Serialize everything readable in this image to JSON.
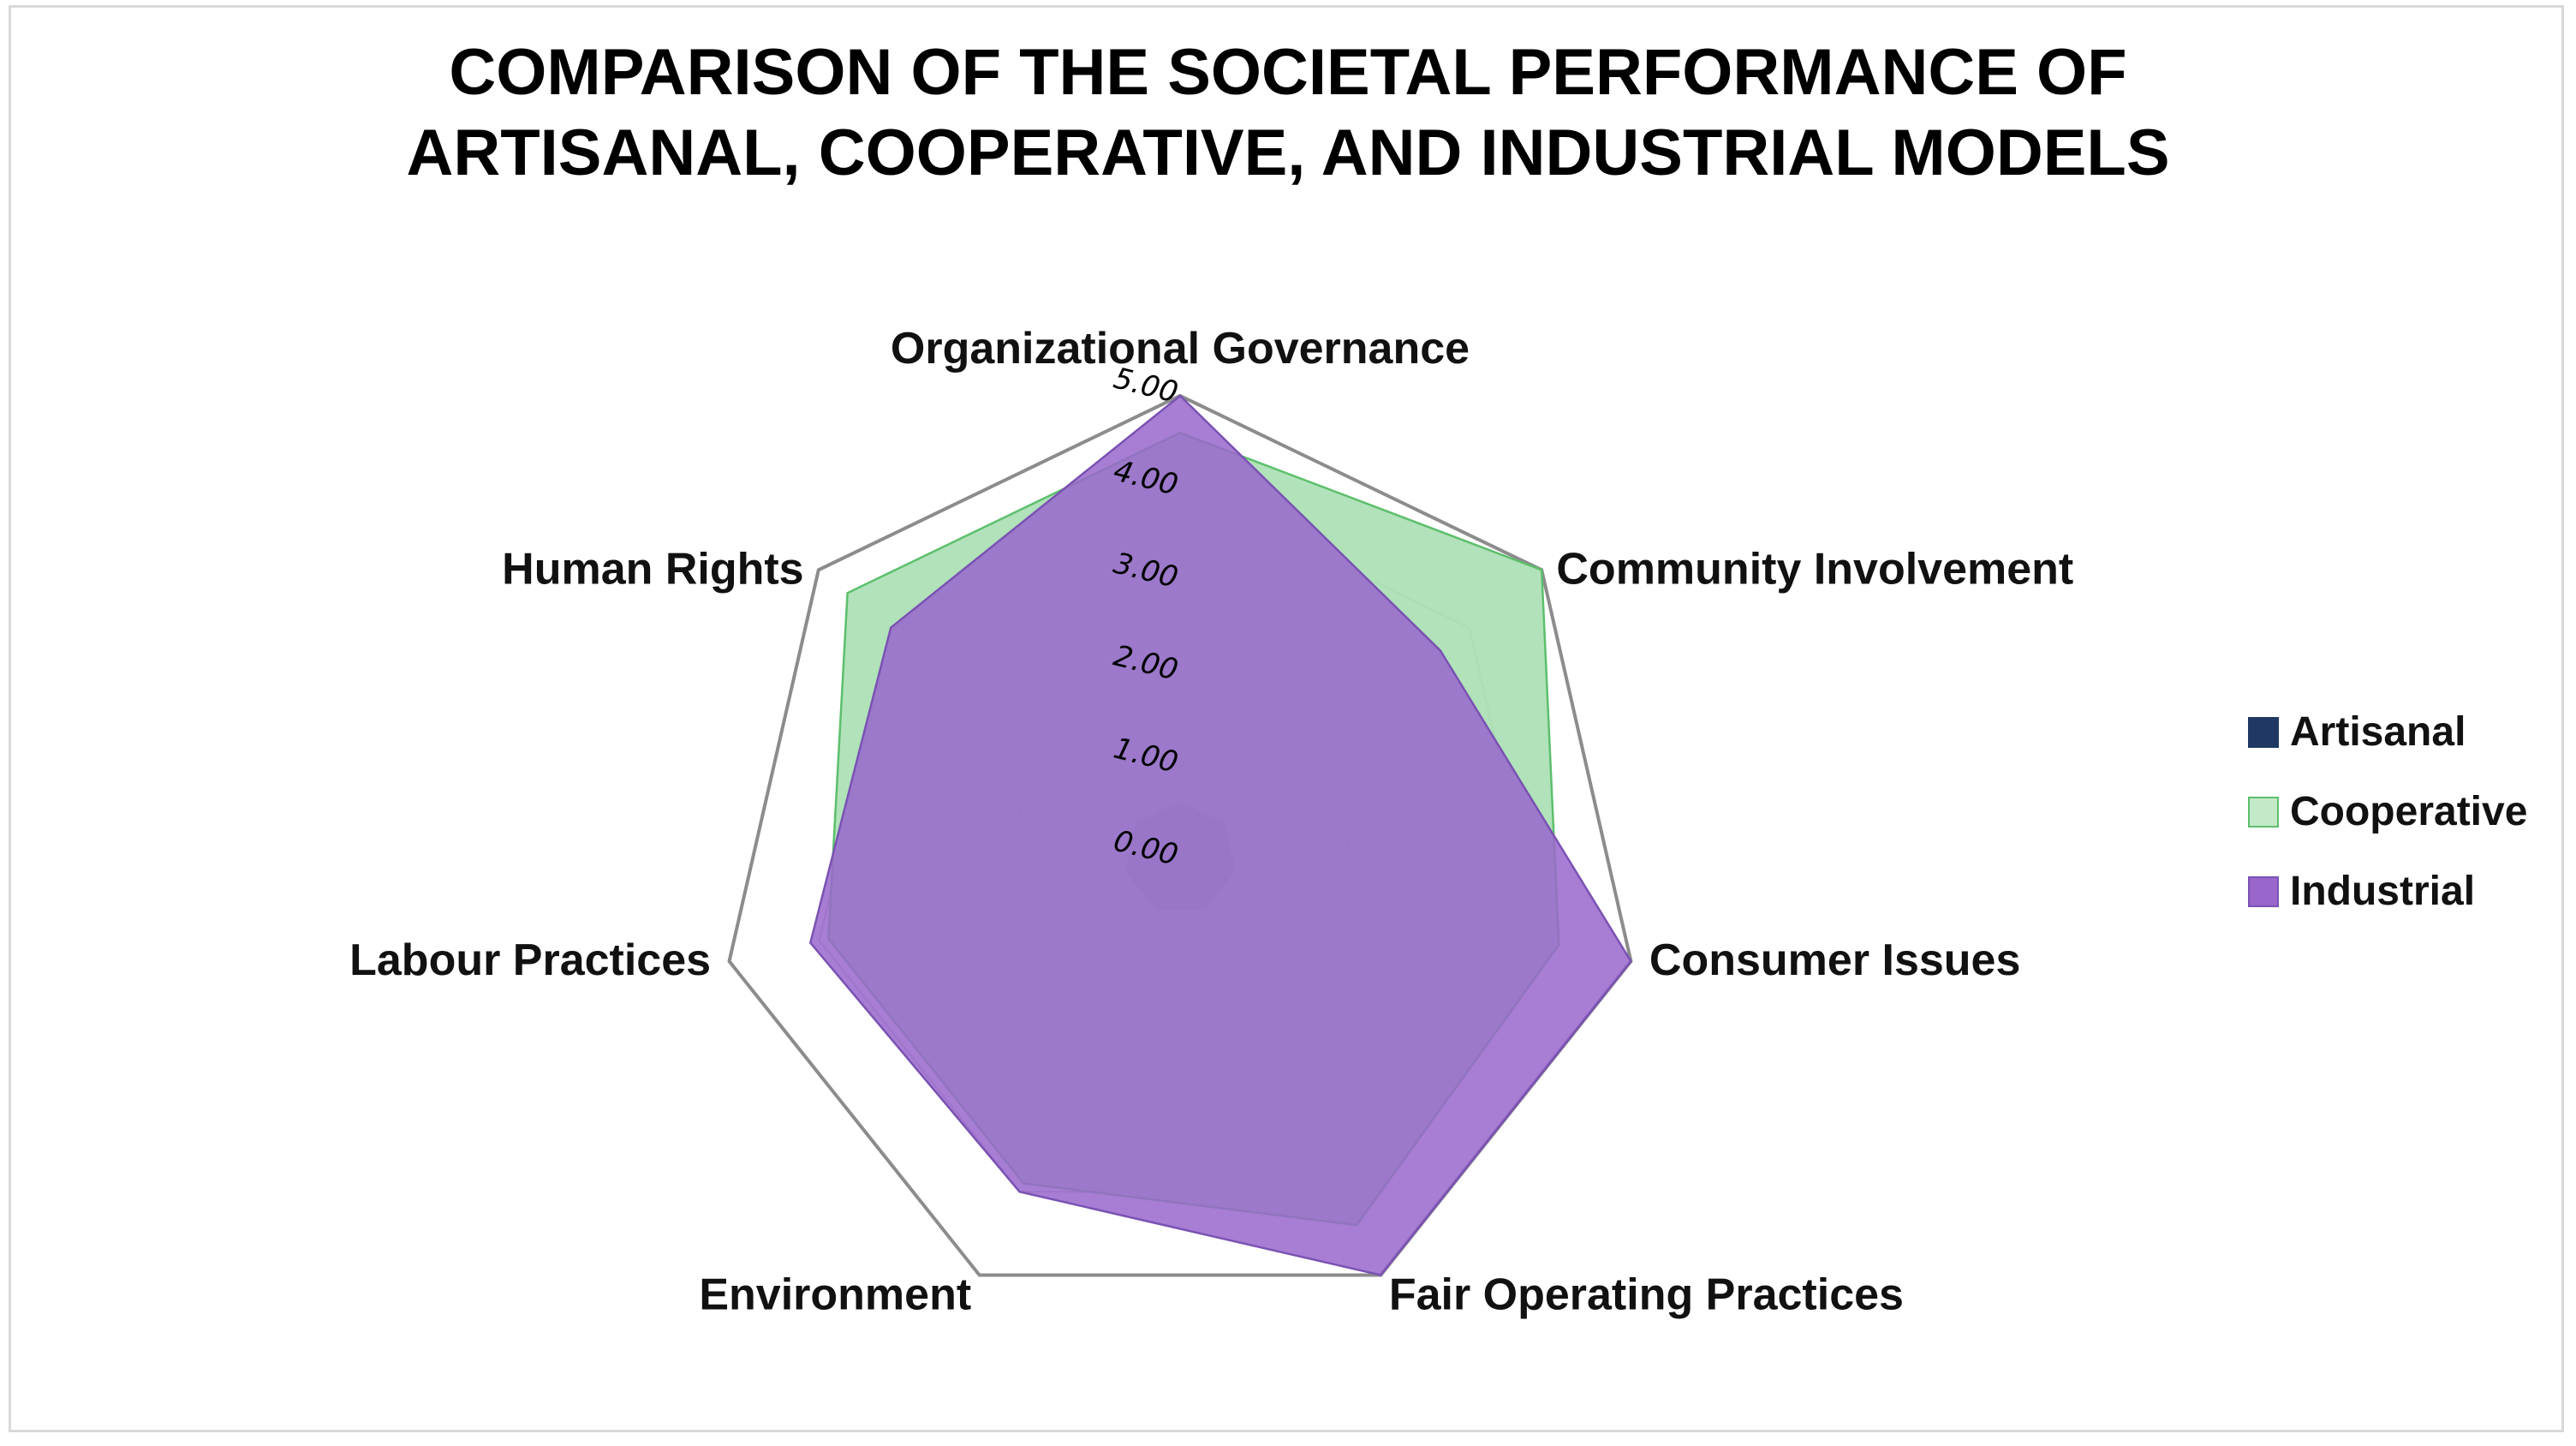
{
  "chart_data": {
    "type": "radar",
    "title_lines": [
      "COMPARISON OF THE SOCIETAL PERFORMANCE OF",
      "ARTISANAL, COOPERATIVE, AND INDUSTRIAL MODELS"
    ],
    "categories": [
      "Organizational Governance",
      "Community Involvement",
      "Consumer Issues",
      "Fair Operating Practices",
      "Environment",
      "Labour Practices",
      "Human Rights"
    ],
    "r_ticks": [
      "0.00",
      "1.00",
      "2.00",
      "3.00",
      "4.00",
      "5.00"
    ],
    "rlim": [
      0,
      5
    ],
    "gridlines": true,
    "legend_position": "right",
    "series": [
      {
        "name": "Artisanal",
        "color": "#1f3864",
        "values": [
          0.6,
          0.6,
          0.6,
          0.6,
          0.6,
          0.6,
          0.6
        ]
      },
      {
        "name": "Cooperative",
        "color": "#a9dfb2",
        "stroke": "#5cbf6c",
        "values": [
          4.6,
          5.0,
          4.2,
          4.4,
          3.9,
          3.9,
          4.6
        ]
      },
      {
        "name": "Industrial",
        "color": "#9966cc",
        "stroke": "#7a52b3",
        "values": [
          5.0,
          3.6,
          5.0,
          5.0,
          4.0,
          4.1,
          4.0
        ]
      }
    ]
  }
}
